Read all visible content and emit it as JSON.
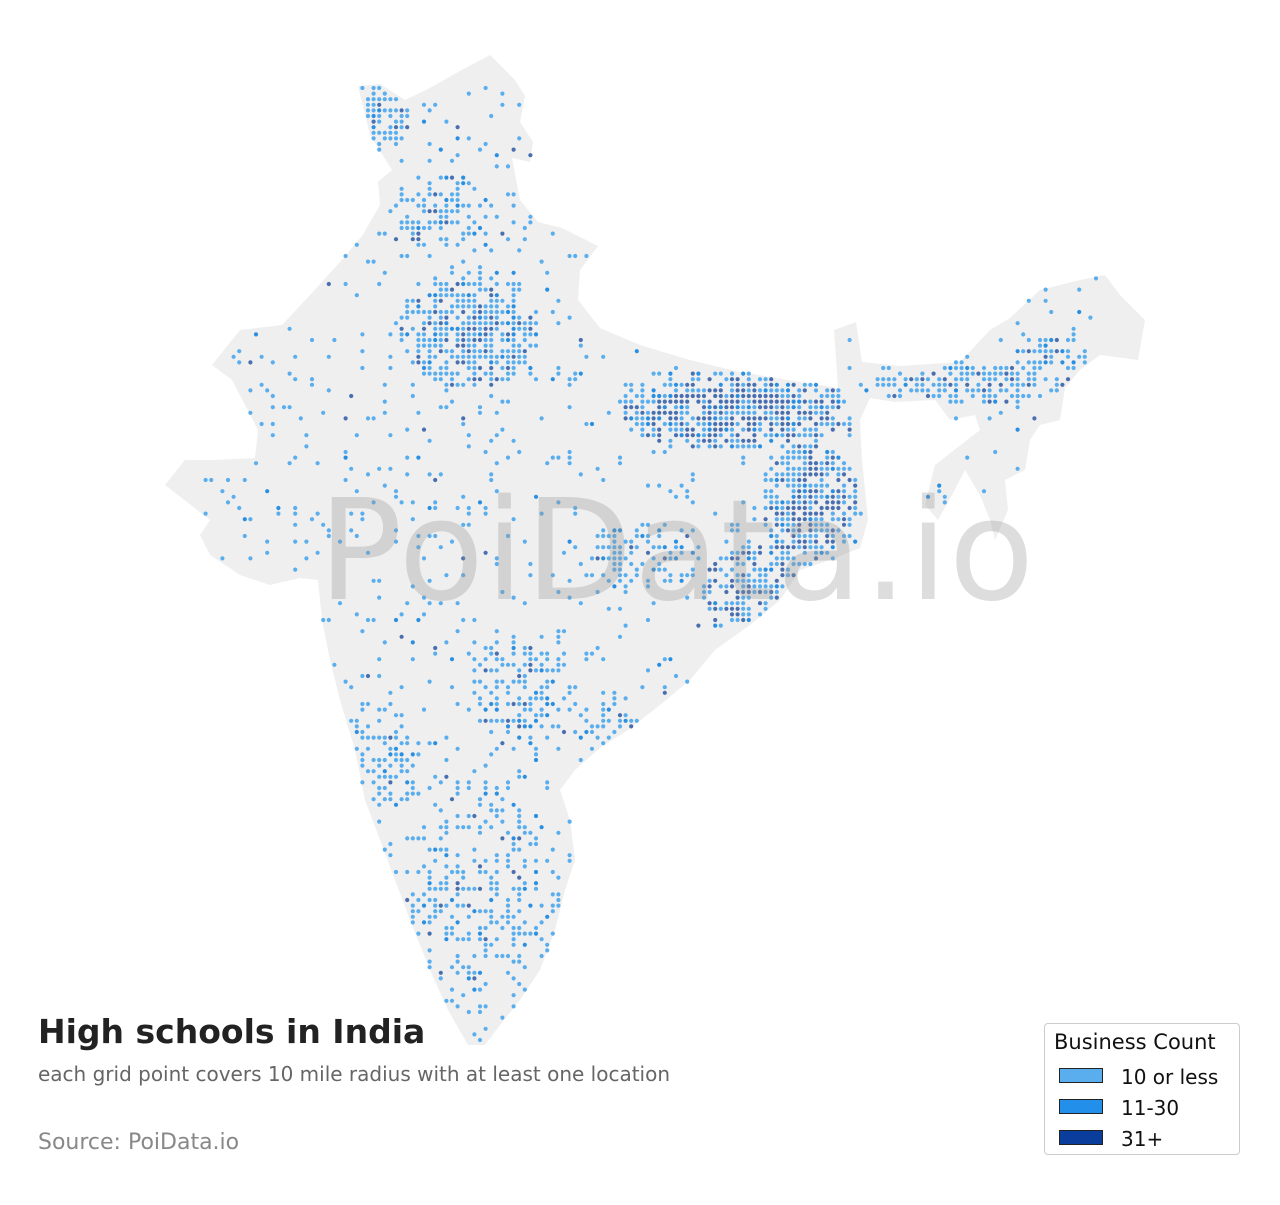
{
  "map": {
    "title": "High schools in India",
    "subtitle": "each grid point covers 10 mile radius with at least one location",
    "source": "Source: PoiData.io",
    "watermark": "PoiData.io",
    "land_color": "#efefef",
    "dot_colors": {
      "low": "#5aaeee",
      "mid": "#2a8fe0",
      "high": "#4a6fb0"
    }
  },
  "legend": {
    "title": "Business Count",
    "items": [
      {
        "label": "10 or less",
        "color": "#5aaeee"
      },
      {
        "label": "11-30",
        "color": "#2290ea"
      },
      {
        "label": "31+",
        "color": "#0b3e9c"
      }
    ]
  }
}
